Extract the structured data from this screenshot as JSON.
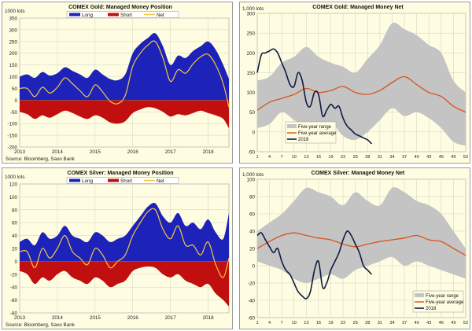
{
  "chart_data": [
    {
      "type": "area",
      "title": "COMEX Gold: Managed Money Position",
      "unit_label": "1000 lots",
      "source": "Source: Bloomberg, Saxo Bank",
      "ylim": [
        -200,
        350
      ],
      "yticks": [
        -200,
        -150,
        -100,
        -50,
        0,
        50,
        100,
        150,
        200,
        250,
        300,
        350
      ],
      "xlim": [
        2013.0,
        2018.55
      ],
      "xticks": [
        "2013",
        "2014",
        "2015",
        "2016",
        "2017",
        "2018"
      ],
      "legend_position": "top",
      "colors": {
        "long": "#1d23b8",
        "short": "#c10f0f",
        "net": "#f3c742"
      },
      "x": [
        2013.0,
        2013.2,
        2013.4,
        2013.6,
        2013.8,
        2014.0,
        2014.2,
        2014.4,
        2014.6,
        2014.8,
        2015.0,
        2015.2,
        2015.4,
        2015.6,
        2015.8,
        2016.0,
        2016.2,
        2016.4,
        2016.6,
        2016.8,
        2017.0,
        2017.2,
        2017.4,
        2017.6,
        2017.8,
        2018.0,
        2018.2,
        2018.4,
        2018.55
      ],
      "series": [
        {
          "name": "Long",
          "values": [
            100,
            110,
            95,
            120,
            105,
            115,
            140,
            125,
            110,
            95,
            130,
            110,
            90,
            85,
            110,
            200,
            240,
            265,
            285,
            230,
            150,
            190,
            180,
            210,
            230,
            250,
            215,
            150,
            90
          ]
        },
        {
          "name": "Short",
          "values": [
            -50,
            -60,
            -80,
            -65,
            -75,
            -60,
            -45,
            -55,
            -70,
            -80,
            -65,
            -75,
            -95,
            -100,
            -90,
            -55,
            -40,
            -30,
            -35,
            -50,
            -70,
            -60,
            -65,
            -55,
            -45,
            -55,
            -65,
            -80,
            -120
          ]
        },
        {
          "name": "Net",
          "values": [
            50,
            50,
            15,
            55,
            30,
            55,
            95,
            70,
            40,
            15,
            65,
            35,
            -5,
            -15,
            20,
            145,
            200,
            235,
            250,
            180,
            80,
            130,
            115,
            155,
            185,
            195,
            150,
            70,
            -30
          ]
        }
      ]
    },
    {
      "type": "line",
      "title": "COMEX Gold: Managed Money Net",
      "unit_label": "1,000 lots",
      "ylim": [
        -50,
        300
      ],
      "yticks": [
        -50,
        0,
        50,
        100,
        150,
        200,
        250,
        300
      ],
      "xlim": [
        1,
        52
      ],
      "xticks": [
        1,
        4,
        7,
        10,
        13,
        16,
        19,
        22,
        25,
        28,
        31,
        34,
        37,
        40,
        43,
        46,
        49,
        52
      ],
      "legend_position": "bottom-left",
      "colors": {
        "range": "#c4c4c4",
        "average": "#d9531e",
        "current": "#0d1b45"
      },
      "range_x": [
        1,
        4,
        7,
        10,
        13,
        16,
        19,
        22,
        25,
        28,
        31,
        34,
        37,
        40,
        43,
        46,
        49,
        52
      ],
      "range_upper": [
        130,
        140,
        175,
        190,
        215,
        190,
        175,
        165,
        150,
        185,
        220,
        275,
        260,
        245,
        220,
        200,
        130,
        100
      ],
      "range_lower": [
        10,
        20,
        50,
        30,
        10,
        15,
        25,
        -10,
        -20,
        0,
        30,
        60,
        40,
        50,
        35,
        10,
        -25,
        -35
      ],
      "series": [
        {
          "name": "Five-year range"
        },
        {
          "name": "Five-year average",
          "x": [
            1,
            4,
            7,
            10,
            13,
            16,
            19,
            22,
            25,
            28,
            31,
            34,
            37,
            40,
            43,
            46,
            49,
            52
          ],
          "values": [
            55,
            75,
            85,
            95,
            110,
            100,
            105,
            115,
            100,
            95,
            105,
            125,
            140,
            120,
            100,
            90,
            65,
            50
          ]
        },
        {
          "name": "2018",
          "x": [
            1,
            2,
            3,
            4,
            5,
            6,
            7,
            8,
            9,
            10,
            11,
            12,
            13,
            14,
            15,
            16,
            17,
            18,
            19,
            20,
            21,
            22,
            23,
            24,
            25,
            26,
            27,
            28,
            29
          ],
          "values": [
            150,
            195,
            200,
            205,
            210,
            200,
            175,
            150,
            120,
            115,
            150,
            130,
            75,
            65,
            100,
            95,
            40,
            55,
            70,
            60,
            65,
            35,
            15,
            5,
            -5,
            -10,
            -15,
            -20,
            -30
          ]
        }
      ]
    },
    {
      "type": "area",
      "title": "COMEX Silver: Managed Money Position",
      "unit_label": "1000 lots",
      "source": "Source: Bloomberg, Saxo Bank",
      "ylim": [
        -80,
        120
      ],
      "yticks": [
        -80,
        -60,
        -40,
        -20,
        0,
        20,
        40,
        60,
        80,
        100,
        120
      ],
      "xlim": [
        2013.0,
        2018.55
      ],
      "xticks": [
        "2013",
        "2014",
        "2015",
        "2016",
        "2017",
        "2018"
      ],
      "legend_position": "top",
      "colors": {
        "long": "#1d23b8",
        "short": "#c10f0f",
        "net": "#f3c742"
      },
      "x": [
        2013.0,
        2013.2,
        2013.4,
        2013.6,
        2013.8,
        2014.0,
        2014.2,
        2014.4,
        2014.6,
        2014.8,
        2015.0,
        2015.2,
        2015.4,
        2015.6,
        2015.8,
        2016.0,
        2016.2,
        2016.4,
        2016.6,
        2016.8,
        2017.0,
        2017.2,
        2017.4,
        2017.6,
        2017.8,
        2018.0,
        2018.2,
        2018.4,
        2018.55
      ],
      "series": [
        {
          "name": "Long",
          "values": [
            30,
            35,
            25,
            45,
            35,
            40,
            55,
            40,
            35,
            30,
            45,
            40,
            30,
            35,
            40,
            55,
            70,
            85,
            90,
            70,
            60,
            75,
            55,
            60,
            50,
            65,
            45,
            35,
            75
          ]
        },
        {
          "name": "Short",
          "values": [
            -15,
            -20,
            -35,
            -25,
            -30,
            -20,
            -15,
            -25,
            -30,
            -35,
            -25,
            -30,
            -40,
            -35,
            -30,
            -15,
            -10,
            -8,
            -10,
            -20,
            -25,
            -20,
            -30,
            -35,
            -40,
            -35,
            -50,
            -60,
            -70
          ]
        },
        {
          "name": "Net",
          "values": [
            15,
            15,
            -10,
            20,
            5,
            20,
            40,
            15,
            5,
            -5,
            20,
            10,
            -10,
            0,
            10,
            40,
            60,
            77,
            80,
            50,
            35,
            55,
            25,
            25,
            10,
            30,
            -5,
            -25,
            5
          ]
        }
      ]
    },
    {
      "type": "line",
      "title": "COMEX Silver: Managed Money Net",
      "unit_label": "1,000 lots",
      "ylim": [
        -60,
        100
      ],
      "yticks": [
        -60,
        -40,
        -20,
        0,
        20,
        40,
        60,
        80,
        100
      ],
      "xlim": [
        1,
        52
      ],
      "xticks": [
        1,
        4,
        7,
        10,
        13,
        16,
        19,
        22,
        25,
        28,
        31,
        34,
        37,
        40,
        43,
        46,
        49,
        52
      ],
      "legend_position": "bottom-right",
      "colors": {
        "range": "#c4c4c4",
        "average": "#d9531e",
        "current": "#0d1b45"
      },
      "range_x": [
        1,
        4,
        7,
        10,
        13,
        16,
        19,
        22,
        25,
        28,
        31,
        34,
        37,
        40,
        43,
        46,
        49,
        52
      ],
      "range_upper": [
        40,
        50,
        60,
        75,
        90,
        85,
        80,
        70,
        85,
        75,
        70,
        90,
        85,
        75,
        70,
        60,
        40,
        20
      ],
      "range_lower": [
        5,
        0,
        -5,
        -15,
        -20,
        -15,
        -10,
        -15,
        -5,
        0,
        5,
        10,
        0,
        5,
        0,
        -5,
        -10,
        -15
      ],
      "series": [
        {
          "name": "Five-year range"
        },
        {
          "name": "Five-year average",
          "x": [
            1,
            4,
            7,
            10,
            13,
            16,
            19,
            22,
            25,
            28,
            31,
            34,
            37,
            40,
            43,
            46,
            49,
            52
          ],
          "values": [
            20,
            28,
            35,
            38,
            35,
            32,
            30,
            25,
            22,
            25,
            28,
            30,
            32,
            35,
            30,
            28,
            20,
            12
          ]
        },
        {
          "name": "2018",
          "x": [
            1,
            2,
            3,
            4,
            5,
            6,
            7,
            8,
            9,
            10,
            11,
            12,
            13,
            14,
            15,
            16,
            17,
            18,
            19,
            20,
            21,
            22,
            23,
            24,
            25,
            26,
            27,
            28,
            29
          ],
          "values": [
            35,
            38,
            30,
            22,
            15,
            20,
            5,
            -5,
            -10,
            -20,
            -30,
            -35,
            -38,
            -30,
            -5,
            5,
            -25,
            -20,
            -5,
            5,
            15,
            30,
            40,
            35,
            25,
            15,
            0,
            -5,
            -10
          ]
        }
      ]
    }
  ]
}
